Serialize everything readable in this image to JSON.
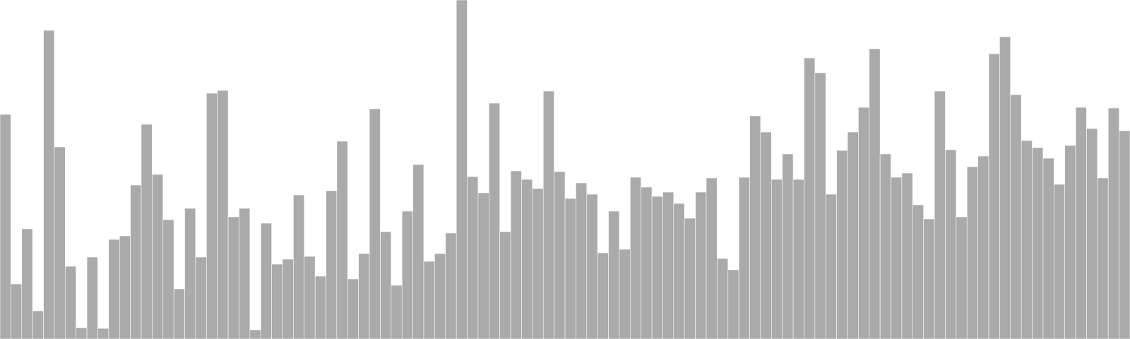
{
  "chart_data": {
    "type": "bar",
    "title": "",
    "xlabel": "",
    "ylabel": "",
    "grid": false,
    "legend": "none",
    "ylim": [
      0,
      480
    ],
    "bar_color": "#aaaaaa",
    "background_color": "#ffffff",
    "values": [
      318,
      78,
      156,
      40,
      437,
      272,
      103,
      16,
      116,
      15,
      141,
      146,
      218,
      304,
      233,
      169,
      71,
      185,
      116,
      348,
      352,
      173,
      185,
      13,
      164,
      106,
      113,
      204,
      117,
      89,
      210,
      280,
      85,
      121,
      326,
      152,
      76,
      181,
      247,
      110,
      121,
      150,
      480,
      230,
      207,
      334,
      152,
      238,
      226,
      213,
      351,
      237,
      199,
      221,
      205,
      122,
      181,
      127,
      229,
      215,
      202,
      208,
      192,
      171,
      208,
      228,
      114,
      98,
      229,
      316,
      293,
      226,
      262,
      226,
      398,
      377,
      205,
      267,
      293,
      328,
      411,
      262,
      229,
      235,
      190,
      170,
      351,
      268,
      173,
      244,
      259,
      404,
      428,
      346,
      281,
      271,
      256,
      219,
      274,
      328,
      298,
      228,
      327,
      295
    ]
  }
}
